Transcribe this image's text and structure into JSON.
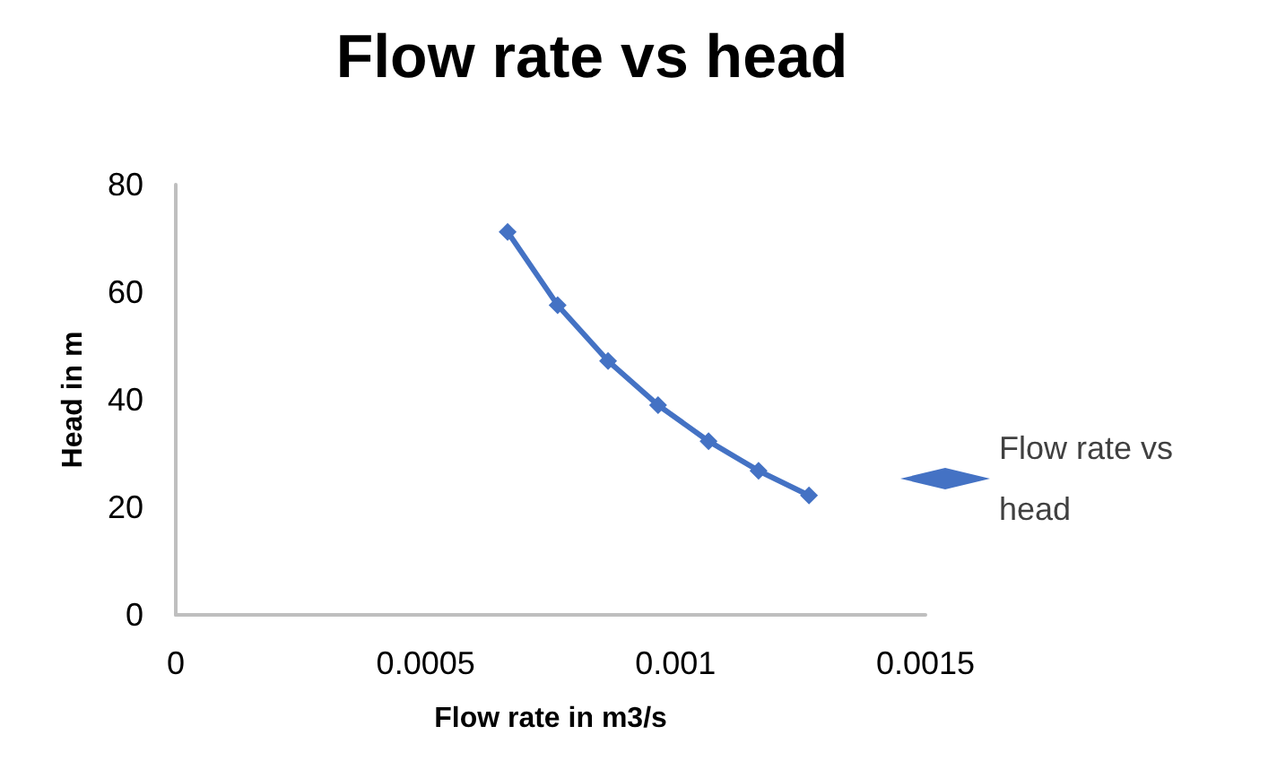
{
  "chart_data": {
    "type": "line",
    "title": "Flow rate vs head",
    "xlabel": "Flow rate in m3/s",
    "ylabel": "Head in m",
    "x": [
      0.000664,
      0.000764,
      0.000865,
      0.000965,
      0.001066,
      0.001166,
      0.001267
    ],
    "series": [
      {
        "name": "Flow rate vs head",
        "color": "#4472c4",
        "values": [
          71.2,
          57.6,
          47.2,
          39,
          32.3,
          26.8,
          22.2
        ]
      }
    ],
    "xlim": [
      0,
      0.0015
    ],
    "xticks": [
      0,
      0.0005,
      0.001,
      0.0015
    ],
    "ylim": [
      0,
      80
    ],
    "yticks": [
      0,
      20,
      40,
      60,
      80
    ],
    "grid": false,
    "legend": "right",
    "marker": "diamond",
    "line_style": "solid"
  }
}
